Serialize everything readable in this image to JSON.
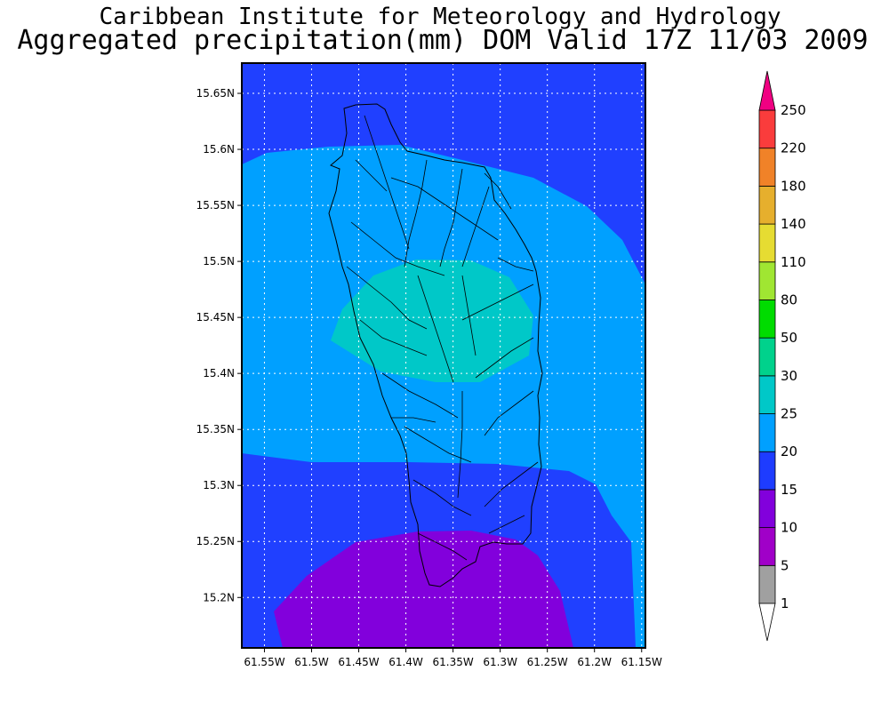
{
  "title_line1": "Caribbean Institute for Meteorology and Hydrology",
  "title_line2": "Aggregated precipitation(mm) DOM Valid 17Z 11/03 2009",
  "chart_data": {
    "type": "heatmap",
    "title": "Aggregated precipitation(mm) DOM Valid 17Z 11/03 2009",
    "region": "Dominica",
    "units": "mm",
    "x_ticks": [
      "61.55W",
      "61.5W",
      "61.45W",
      "61.4W",
      "61.35W",
      "61.3W",
      "61.25W",
      "61.2W",
      "61.15W"
    ],
    "y_ticks": [
      "15.65N",
      "15.6N",
      "15.55N",
      "15.5N",
      "15.45N",
      "15.4N",
      "15.35N",
      "15.3N",
      "15.25N",
      "15.2N"
    ],
    "xlim": [
      -61.574,
      -61.146
    ],
    "ylim": [
      15.155,
      15.677
    ],
    "grid": true,
    "colorbar": {
      "labels": [
        "1",
        "5",
        "10",
        "15",
        "20",
        "25",
        "30",
        "50",
        "80",
        "110",
        "140",
        "180",
        "220",
        "250"
      ],
      "colors": [
        "#a0a0a0",
        "#a000c8",
        "#8200dc",
        "#1e3cff",
        "#00a0ff",
        "#00c8c8",
        "#00d28c",
        "#00dc00",
        "#a0e632",
        "#e6dc32",
        "#e6af2d",
        "#f08228",
        "#fa3c3c",
        "#f00082"
      ],
      "placement": "right"
    },
    "contour_fields": [
      {
        "range": "15-20",
        "color": "#2040ff",
        "note": "background"
      },
      {
        "range": "20-25",
        "color": "#00a0ff"
      },
      {
        "range": "25-30",
        "color": "#00c8c8"
      },
      {
        "range": "10-15",
        "color": "#8200dc"
      }
    ]
  }
}
